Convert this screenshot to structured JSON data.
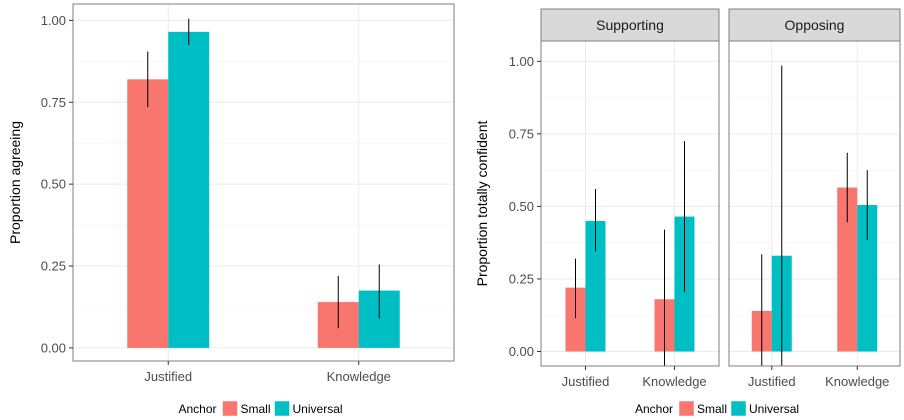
{
  "colors": {
    "small": "#F8766D",
    "universal": "#00BFC4",
    "strip_bg": "#d9d9d9",
    "grid": "#ebebeb",
    "panel_border": "#7f7f7f",
    "errorbar": "#000000"
  },
  "chart_data": [
    {
      "type": "bar",
      "ylabel": "Proportion agreeing",
      "ylim": [
        -0.04,
        1.05
      ],
      "yticks": [
        "0.00",
        "0.25",
        "0.50",
        "0.75",
        "1.00"
      ],
      "categories": [
        "Justified",
        "Knowledge"
      ],
      "series": [
        {
          "name": "Small",
          "values": [
            0.82,
            0.14
          ],
          "lower": [
            0.735,
            0.06
          ],
          "upper": [
            0.905,
            0.22
          ]
        },
        {
          "name": "Universal",
          "values": [
            0.965,
            0.175
          ],
          "lower": [
            0.925,
            0.09
          ],
          "upper": [
            1.005,
            0.255
          ]
        }
      ],
      "legend": {
        "title": "Anchor",
        "position": "bottom",
        "entries": [
          "Small",
          "Universal"
        ]
      },
      "grid": true
    },
    {
      "type": "bar",
      "ylabel": "Proportion totally confident",
      "ylim": [
        -0.05,
        1.07
      ],
      "yticks": [
        "0.00",
        "0.25",
        "0.50",
        "0.75",
        "1.00"
      ],
      "facets": [
        {
          "title": "Supporting",
          "categories": [
            "Justified",
            "Knowledge"
          ],
          "series": [
            {
              "name": "Small",
              "values": [
                0.22,
                0.18
              ],
              "lower": [
                0.115,
                -0.05
              ],
              "upper": [
                0.32,
                0.42
              ]
            },
            {
              "name": "Universal",
              "values": [
                0.45,
                0.465
              ],
              "lower": [
                0.345,
                0.205
              ],
              "upper": [
                0.56,
                0.725
              ]
            }
          ]
        },
        {
          "title": "Opposing",
          "categories": [
            "Justified",
            "Knowledge"
          ],
          "series": [
            {
              "name": "Small",
              "values": [
                0.14,
                0.565
              ],
              "lower": [
                -0.05,
                0.445
              ],
              "upper": [
                0.335,
                0.685
              ]
            },
            {
              "name": "Universal",
              "values": [
                0.33,
                0.505
              ],
              "lower": [
                -0.05,
                0.385
              ],
              "upper": [
                0.985,
                0.625
              ]
            }
          ]
        }
      ],
      "legend": {
        "title": "Anchor",
        "position": "bottom",
        "entries": [
          "Small",
          "Universal"
        ]
      },
      "grid": true
    }
  ]
}
